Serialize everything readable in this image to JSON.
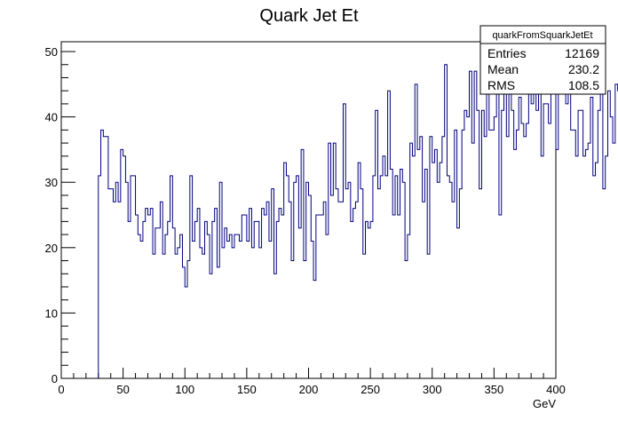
{
  "chart_data": {
    "type": "bar",
    "style": "step-histogram",
    "title": "Quark Jet Et",
    "xlabel": "GeV",
    "ylabel": "",
    "xlim": [
      0,
      400
    ],
    "ylim": [
      0,
      51.5
    ],
    "bin_width": 2,
    "bin_start": 30,
    "x_ticks": [
      0,
      50,
      100,
      150,
      200,
      250,
      300,
      350,
      400
    ],
    "y_ticks": [
      0,
      10,
      20,
      30,
      40,
      50
    ],
    "tick_labels_x": [
      "0",
      "50",
      "100",
      "150",
      "200",
      "250",
      "300",
      "350",
      "400"
    ],
    "tick_labels_y": [
      "0",
      "10",
      "20",
      "30",
      "40",
      "50"
    ],
    "line_color": "#000080",
    "grid": false,
    "values": [
      31,
      38,
      37,
      37,
      29,
      29,
      27,
      30,
      27,
      35,
      34,
      30,
      24,
      31,
      31,
      25,
      22,
      21,
      24,
      26,
      25,
      26,
      19,
      23,
      23,
      27,
      19,
      22,
      24,
      31,
      23,
      19,
      20,
      22,
      17,
      14,
      18,
      31,
      21,
      24,
      26,
      20,
      19,
      24,
      22,
      16,
      24,
      26,
      17,
      30,
      20,
      23,
      21,
      22,
      20,
      22,
      22,
      21,
      25,
      25,
      21,
      26,
      20,
      24,
      24,
      20,
      26,
      25,
      27,
      21,
      29,
      16,
      24,
      26,
      25,
      33,
      31,
      27,
      18,
      30,
      31,
      23,
      35,
      18,
      30,
      28,
      21,
      15,
      25,
      25,
      25,
      27,
      22,
      36,
      28,
      36,
      29,
      27,
      27,
      42,
      29,
      30,
      24,
      26,
      27,
      33,
      29,
      19,
      24,
      23,
      24,
      31,
      41,
      29,
      31,
      34,
      31,
      44,
      32,
      25,
      31,
      25,
      32,
      30,
      18,
      22,
      36,
      34,
      45,
      35,
      37,
      27,
      32,
      19,
      37,
      33,
      35,
      30,
      33,
      37,
      48,
      31,
      30,
      27,
      38,
      23,
      29,
      38,
      41,
      40,
      47,
      36,
      47,
      41,
      29,
      41,
      37,
      44,
      38,
      38,
      40,
      44,
      25,
      41,
      50,
      37,
      46,
      41,
      35,
      38,
      43,
      39,
      37,
      39,
      44,
      42,
      45,
      41,
      45,
      34,
      42,
      42,
      39,
      47,
      44,
      35,
      45,
      48,
      44,
      42,
      44,
      38,
      38,
      34,
      41,
      41,
      34,
      35,
      36,
      43,
      31,
      33,
      41,
      47,
      29,
      34,
      44,
      40,
      36,
      45,
      44,
      49,
      38,
      33,
      38,
      44,
      32,
      39,
      38,
      30,
      38,
      41,
      42,
      32
    ]
  },
  "stats_box": {
    "name": "quarkFromSquarkJetEt",
    "rows": [
      {
        "label": "Entries",
        "value": "12169"
      },
      {
        "label": "Mean",
        "value": "230.2"
      },
      {
        "label": "RMS",
        "value": "108.5"
      }
    ]
  }
}
